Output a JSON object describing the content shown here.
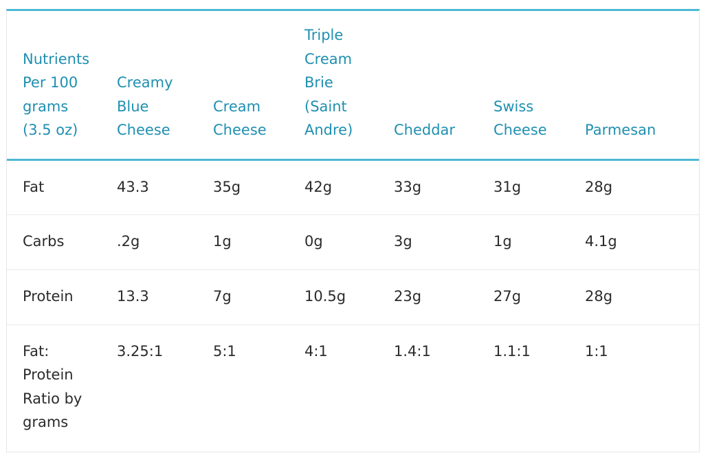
{
  "table": {
    "headers": [
      [
        "Nutrients",
        "Per 100",
        "grams",
        "(3.5 oz)"
      ],
      [
        "Creamy",
        "Blue",
        "Cheese"
      ],
      [
        "Cream",
        "Cheese"
      ],
      [
        "Triple",
        "Cream",
        "Brie",
        "(Saint",
        "Andre)"
      ],
      [
        "Cheddar"
      ],
      [
        "Swiss",
        "Cheese"
      ],
      [
        "Parmesan"
      ]
    ],
    "rows": [
      {
        "label": [
          "Fat"
        ],
        "values": [
          "43.3",
          "35g",
          "42g",
          "33g",
          "31g",
          "28g"
        ]
      },
      {
        "label": [
          "Carbs"
        ],
        "values": [
          ".2g",
          "1g",
          "0g",
          "3g",
          "1g",
          "4.1g"
        ]
      },
      {
        "label": [
          "Protein"
        ],
        "values": [
          "13.3",
          "7g",
          "10.5g",
          "23g",
          "27g",
          "28g"
        ]
      },
      {
        "label": [
          "Fat:",
          "Protein",
          "Ratio by",
          "grams"
        ],
        "values": [
          "3.25:1",
          "5:1",
          "4:1",
          "1.4:1",
          "1.1:1",
          "1:1"
        ]
      }
    ]
  },
  "colors": {
    "accent": "#4db8d4",
    "header_text": "#1f8fb0",
    "body_text": "#2b2b2b",
    "row_divider": "#e8eaec"
  }
}
